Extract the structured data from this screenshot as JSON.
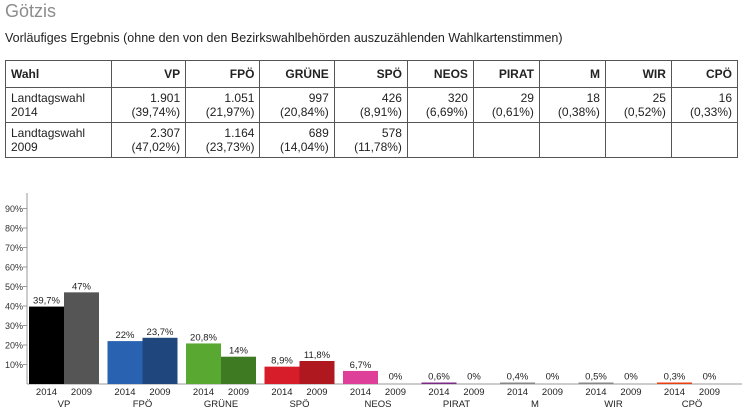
{
  "page": {
    "title": "Götzis",
    "subtitle": "Vorläufiges Ergebnis (ohne den von den Bezirkswahlbehörden auszuzählenden Wahlkartenstimmen)"
  },
  "table": {
    "headers": [
      "Wahl",
      "VP",
      "FPÖ",
      "GRÜNE",
      "SPÖ",
      "NEOS",
      "PIRAT",
      "M",
      "WIR",
      "CPÖ"
    ],
    "rows": [
      {
        "label": [
          "Landtagswahl",
          "2014"
        ],
        "cells": [
          [
            "1.901",
            "(39,74%)"
          ],
          [
            "1.051",
            "(21,97%)"
          ],
          [
            "997",
            "(20,84%)"
          ],
          [
            "426",
            "(8,91%)"
          ],
          [
            "320",
            "(6,69%)"
          ],
          [
            "29",
            "(0,61%)"
          ],
          [
            "18",
            "(0,38%)"
          ],
          [
            "25",
            "(0,52%)"
          ],
          [
            "16",
            "(0,33%)"
          ]
        ]
      },
      {
        "label": [
          "Landtagswahl",
          "2009"
        ],
        "cells": [
          [
            "2.307",
            "(47,02%)"
          ],
          [
            "1.164",
            "(23,73%)"
          ],
          [
            "689",
            "(14,04%)"
          ],
          [
            "578",
            "(11,78%)"
          ],
          [
            "",
            ""
          ],
          [
            "",
            ""
          ],
          [
            "",
            ""
          ],
          [
            "",
            ""
          ],
          [
            "",
            ""
          ]
        ]
      }
    ]
  },
  "chart_data": {
    "type": "bar",
    "ylim": [
      0,
      95
    ],
    "yticks": [
      10,
      20,
      30,
      40,
      50,
      60,
      70,
      80,
      90
    ],
    "ytick_labels": [
      "10%",
      "20%",
      "30%",
      "40%",
      "50%",
      "60%",
      "70%",
      "80%",
      "90%"
    ],
    "categories": [
      "VP",
      "FPÖ",
      "GRÜNE",
      "SPÖ",
      "NEOS",
      "PIRAT",
      "M",
      "WIR",
      "CPÖ"
    ],
    "series": [
      {
        "name": "2014",
        "values": [
          39.7,
          22,
          20.8,
          8.9,
          6.7,
          0.6,
          0.4,
          0.5,
          0.3
        ],
        "labels": [
          "39,7%",
          "22%",
          "20,8%",
          "8,9%",
          "6,7%",
          "0,6%",
          "0,4%",
          "0,5%",
          "0,3%"
        ]
      },
      {
        "name": "2009",
        "values": [
          47,
          23.7,
          14,
          11.8,
          0,
          0,
          0,
          0,
          0
        ],
        "labels": [
          "47%",
          "23,7%",
          "14%",
          "11,8%",
          "0%",
          "0%",
          "0%",
          "0%",
          "0%"
        ]
      }
    ],
    "colors": {
      "2014": [
        "#000000",
        "#2a62b2",
        "#58a832",
        "#d71d2a",
        "#de3f99",
        "#7b2a86",
        "#888888",
        "#888888",
        "#e84010"
      ],
      "2009": [
        "#555555",
        "#1f477e",
        "#3e7a22",
        "#b01820",
        "#de3f99",
        "#7b2a86",
        "#888888",
        "#888888",
        "#e8a010"
      ]
    }
  }
}
